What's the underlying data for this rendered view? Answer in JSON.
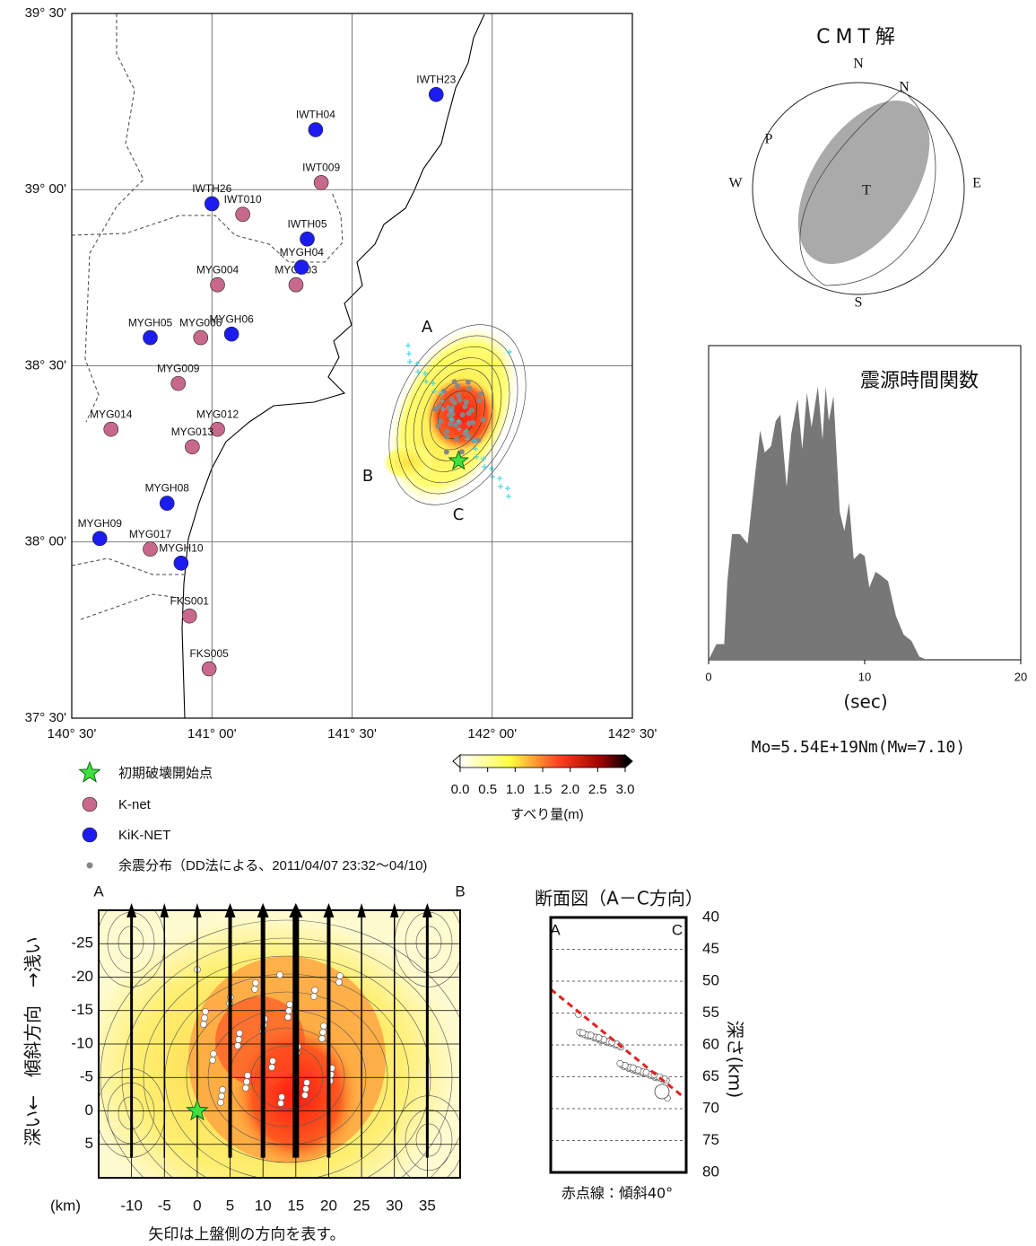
{
  "map": {
    "lonlim": [
      140.5,
      142.5
    ],
    "latlim": [
      37.5,
      39.5
    ],
    "lonticks": [
      {
        "value": 140.5,
        "label": "140° 30'"
      },
      {
        "value": 141,
        "label": "141° 00'"
      },
      {
        "value": 141.5,
        "label": "141° 30'"
      },
      {
        "value": 142,
        "label": "142° 00'"
      },
      {
        "value": 142.5,
        "label": "142° 30'"
      }
    ],
    "latticks": [
      {
        "value": 37.5,
        "label": "37° 30'"
      },
      {
        "value": 38,
        "label": "38° 00'"
      },
      {
        "value": 38.5,
        "label": "38° 30'"
      },
      {
        "value": 39,
        "label": "39° 00'"
      },
      {
        "value": 39.5,
        "label": "39° 30'"
      }
    ],
    "fault_labels": [
      "A",
      "B",
      "C"
    ],
    "epicenter": {
      "lon": 141.88,
      "lat": 38.23
    }
  },
  "legend": {
    "epicenter": "初期破壊開始点",
    "knet": {
      "label": "K-net",
      "color": "#c8698c",
      "stations": [
        {
          "name": "IWT009",
          "lon": 141.39,
          "lat": 39.02
        },
        {
          "name": "IWT010",
          "lon": 141.11,
          "lat": 38.93
        },
        {
          "name": "MYG003",
          "lon": 141.3,
          "lat": 38.73
        },
        {
          "name": "MYG004",
          "lon": 141.02,
          "lat": 38.73
        },
        {
          "name": "MYG006",
          "lon": 140.96,
          "lat": 38.58
        },
        {
          "name": "MYG009",
          "lon": 140.88,
          "lat": 38.45
        },
        {
          "name": "MYG014",
          "lon": 140.64,
          "lat": 38.32
        },
        {
          "name": "MYG012",
          "lon": 141.02,
          "lat": 38.32
        },
        {
          "name": "MYG013",
          "lon": 140.93,
          "lat": 38.27
        },
        {
          "name": "MYG017",
          "lon": 140.78,
          "lat": 37.98
        },
        {
          "name": "FKS001",
          "lon": 140.92,
          "lat": 37.79
        },
        {
          "name": "FKS005",
          "lon": 140.99,
          "lat": 37.64
        }
      ]
    },
    "kiknet": {
      "label": "KiK-NET",
      "color": "#1c1cf0",
      "stations": [
        {
          "name": "IWTH23",
          "lon": 141.8,
          "lat": 39.27
        },
        {
          "name": "IWTH04",
          "lon": 141.37,
          "lat": 39.17
        },
        {
          "name": "IWTH26",
          "lon": 141.0,
          "lat": 38.96
        },
        {
          "name": "IWTH05",
          "lon": 141.34,
          "lat": 38.86
        },
        {
          "name": "MYGH04",
          "lon": 141.32,
          "lat": 38.78
        },
        {
          "name": "MYGH05",
          "lon": 140.78,
          "lat": 38.58
        },
        {
          "name": "MYGH06",
          "lon": 141.07,
          "lat": 38.59
        },
        {
          "name": "MYGH08",
          "lon": 140.84,
          "lat": 38.11
        },
        {
          "name": "MYGH09",
          "lon": 140.6,
          "lat": 38.01
        },
        {
          "name": "MYGH10",
          "lon": 140.89,
          "lat": 37.94
        }
      ]
    },
    "aftershocks": "余震分布（DD法による、2011/04/07 23:32～04/10)"
  },
  "colorbar": {
    "label": "すべり量(m)",
    "lim": [
      0,
      3
    ],
    "ticks": [
      {
        "value": 0,
        "label": "0.0"
      },
      {
        "value": 0.5,
        "label": "0.5"
      },
      {
        "value": 1,
        "label": "1.0"
      },
      {
        "value": 1.5,
        "label": "1.5"
      },
      {
        "value": 2,
        "label": "2.0"
      },
      {
        "value": 2.5,
        "label": "2.5"
      },
      {
        "value": 3,
        "label": "3.0"
      }
    ]
  },
  "cmt": {
    "title": "CMT解",
    "labels": {
      "n_top": "N",
      "n_plane": "N",
      "p": "P",
      "w": "W",
      "t": "T",
      "e": "E",
      "s": "S"
    },
    "moment": "Mo=5.54E+19Nm(Mw=7.10)"
  },
  "chart_data": [
    {
      "type": "area",
      "title": "震源時間関数",
      "color": "#777777",
      "xlabel": "(sec)",
      "xlim": [
        0,
        20
      ],
      "xticks": [
        0,
        10,
        20
      ],
      "ylim": [
        0,
        1
      ],
      "x": [
        0,
        0.5,
        1,
        1.2,
        1.5,
        2,
        2.5,
        3,
        3.3,
        3.6,
        4,
        4.3,
        4.6,
        5,
        5.3,
        5.7,
        6,
        6.3,
        6.6,
        7,
        7.3,
        7.5,
        7.7,
        8,
        8.4,
        8.7,
        9,
        9.3,
        9.7,
        10,
        10.3,
        10.7,
        11,
        11.5,
        12,
        12.5,
        13,
        13.5,
        14
      ],
      "values": [
        0,
        0.05,
        0.05,
        0.25,
        0.4,
        0.4,
        0.37,
        0.6,
        0.73,
        0.66,
        0.68,
        0.76,
        0.78,
        0.55,
        0.72,
        0.83,
        0.67,
        0.85,
        0.74,
        0.87,
        0.7,
        0.87,
        0.76,
        0.84,
        0.47,
        0.41,
        0.5,
        0.32,
        0.34,
        0.33,
        0.23,
        0.28,
        0.27,
        0.25,
        0.14,
        0.08,
        0.06,
        0.01,
        0
      ]
    },
    {
      "type": "slip-section",
      "corner_labels": [
        "A",
        "B"
      ],
      "ylabel": "深い←　傾斜方向　→浅い",
      "xlabel": "(km)",
      "xlim": [
        -15,
        40
      ],
      "ylim": [
        10,
        -30
      ],
      "xticks": [
        -10,
        -5,
        0,
        5,
        10,
        15,
        20,
        25,
        30,
        35
      ],
      "yticks": [
        -25,
        -20,
        -15,
        -10,
        -5,
        0,
        5
      ],
      "grid": true,
      "hypocenter": {
        "x": 0,
        "y": 0
      },
      "note": "矢印は上盤側の方向を表す。"
    },
    {
      "type": "depth-section",
      "title": "断面図（A－C方向）",
      "corner_labels": [
        "A",
        "C"
      ],
      "ylabel": "深さ(km)",
      "ylim": [
        80,
        40
      ],
      "yticks": [
        40,
        45,
        50,
        55,
        60,
        65,
        70,
        75,
        80
      ],
      "caption": "赤点線：傾斜40°"
    }
  ]
}
